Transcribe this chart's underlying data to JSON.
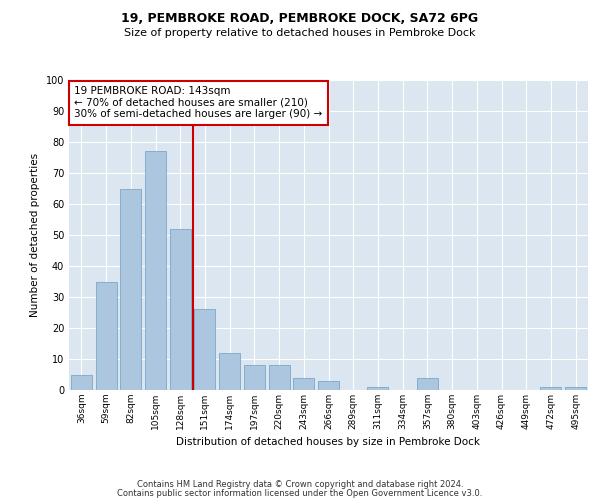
{
  "title1": "19, PEMBROKE ROAD, PEMBROKE DOCK, SA72 6PG",
  "title2": "Size of property relative to detached houses in Pembroke Dock",
  "xlabel": "Distribution of detached houses by size in Pembroke Dock",
  "ylabel": "Number of detached properties",
  "categories": [
    "36sqm",
    "59sqm",
    "82sqm",
    "105sqm",
    "128sqm",
    "151sqm",
    "174sqm",
    "197sqm",
    "220sqm",
    "243sqm",
    "266sqm",
    "289sqm",
    "311sqm",
    "334sqm",
    "357sqm",
    "380sqm",
    "403sqm",
    "426sqm",
    "449sqm",
    "472sqm",
    "495sqm"
  ],
  "values": [
    5,
    35,
    65,
    77,
    52,
    26,
    12,
    8,
    8,
    4,
    3,
    0,
    1,
    0,
    4,
    0,
    0,
    0,
    0,
    1,
    1
  ],
  "bar_color": "#adc6e0",
  "bar_edge_color": "#6a9fc0",
  "bg_color": "#dce6f0",
  "grid_color": "#ffffff",
  "vline_x": 4.5,
  "vline_color": "#cc0000",
  "annotation_text": "19 PEMBROKE ROAD: 143sqm\n← 70% of detached houses are smaller (210)\n30% of semi-detached houses are larger (90) →",
  "annotation_box_color": "#cc0000",
  "ylim": [
    0,
    100
  ],
  "yticks": [
    0,
    10,
    20,
    30,
    40,
    50,
    60,
    70,
    80,
    90,
    100
  ],
  "footer1": "Contains HM Land Registry data © Crown copyright and database right 2024.",
  "footer2": "Contains public sector information licensed under the Open Government Licence v3.0."
}
